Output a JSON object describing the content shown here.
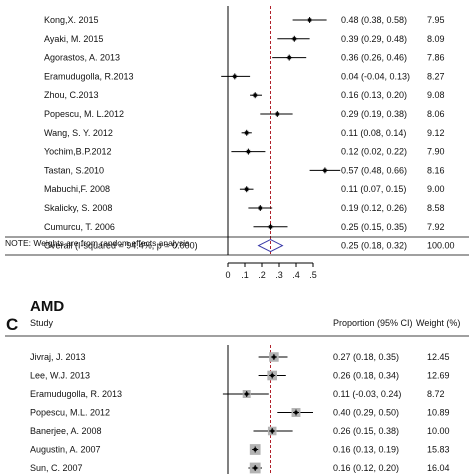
{
  "chart_data": [
    {
      "type": "forest",
      "panel_label": "",
      "title": "",
      "study_header": "",
      "es_header": "",
      "weight_header": "",
      "xlim": [
        0,
        0.5
      ],
      "x_ticks": [
        "0",
        ".1",
        ".2",
        ".3",
        ".4",
        ".5"
      ],
      "x_tick_values": [
        0,
        0.1,
        0.2,
        0.3,
        0.4,
        0.5
      ],
      "overall_line": 0.25,
      "studies": [
        {
          "study": "Kong,X. 2015",
          "es": 0.48,
          "lo": 0.38,
          "hi": 0.58,
          "ci_text": "0.48 (0.38, 0.58)",
          "weight": "7.95"
        },
        {
          "study": "Ayaki, M. 2015",
          "es": 0.39,
          "lo": 0.29,
          "hi": 0.48,
          "ci_text": "0.39 (0.29, 0.48)",
          "weight": "8.09"
        },
        {
          "study": "Agorastos, A. 2013",
          "es": 0.36,
          "lo": 0.26,
          "hi": 0.46,
          "ci_text": "0.36 (0.26, 0.46)",
          "weight": "7.86"
        },
        {
          "study": "Eramudugolla, R.2013",
          "es": 0.04,
          "lo": -0.04,
          "hi": 0.13,
          "ci_text": "0.04 (-0.04, 0.13)",
          "weight": "8.27"
        },
        {
          "study": "Zhou, C.2013",
          "es": 0.16,
          "lo": 0.13,
          "hi": 0.2,
          "ci_text": "0.16 (0.13, 0.20)",
          "weight": "9.08"
        },
        {
          "study": "Popescu, M. L.2012",
          "es": 0.29,
          "lo": 0.19,
          "hi": 0.38,
          "ci_text": "0.29 (0.19, 0.38)",
          "weight": "8.06"
        },
        {
          "study": "Wang, S. Y. 2012",
          "es": 0.11,
          "lo": 0.08,
          "hi": 0.14,
          "ci_text": "0.11 (0.08, 0.14)",
          "weight": "9.12"
        },
        {
          "study": "Yochim,B.P.2012",
          "es": 0.12,
          "lo": 0.02,
          "hi": 0.22,
          "ci_text": "0.12 (0.02, 0.22)",
          "weight": "7.90"
        },
        {
          "study": "Tastan, S.2010",
          "es": 0.57,
          "lo": 0.48,
          "hi": 0.66,
          "ci_text": "0.57 (0.48, 0.66)",
          "weight": "8.16"
        },
        {
          "study": "Mabuchi,F. 2008",
          "es": 0.11,
          "lo": 0.07,
          "hi": 0.15,
          "ci_text": "0.11 (0.07, 0.15)",
          "weight": "9.00"
        },
        {
          "study": "Skalicky, S. 2008",
          "es": 0.19,
          "lo": 0.12,
          "hi": 0.26,
          "ci_text": "0.19 (0.12, 0.26)",
          "weight": "8.58"
        },
        {
          "study": "Cumurcu, T. 2006",
          "es": 0.25,
          "lo": 0.15,
          "hi": 0.35,
          "ci_text": "0.25 (0.15, 0.35)",
          "weight": "7.92"
        }
      ],
      "overall": {
        "label": "Overall  (I-squared = 94.4%, p = 0.000)",
        "es": 0.25,
        "lo": 0.18,
        "hi": 0.32,
        "ci_text": "0.25 (0.18, 0.32)",
        "weight": "100.00"
      },
      "note": "NOTE: Weights are from random effects analysis"
    },
    {
      "type": "forest",
      "panel_label": "C",
      "title": "AMD",
      "study_header": "Study",
      "es_header": "Proportion (95% CI)",
      "weight_header": "Weight (%)",
      "xlim": [
        0,
        0.5
      ],
      "overall_line": 0.25,
      "studies": [
        {
          "study": "Jivraj, J. 2013",
          "es": 0.27,
          "lo": 0.18,
          "hi": 0.35,
          "ci_text": "0.27 (0.18, 0.35)",
          "weight": "12.45"
        },
        {
          "study": "Lee, W.J. 2013",
          "es": 0.26,
          "lo": 0.18,
          "hi": 0.34,
          "ci_text": "0.26 (0.18, 0.34)",
          "weight": "12.69"
        },
        {
          "study": "Eramudugolla, R. 2013",
          "es": 0.11,
          "lo": -0.03,
          "hi": 0.24,
          "ci_text": "0.11 (-0.03, 0.24)",
          "weight": "8.72"
        },
        {
          "study": "Popescu, M.L. 2012",
          "es": 0.4,
          "lo": 0.29,
          "hi": 0.5,
          "ci_text": "0.40 (0.29, 0.50)",
          "weight": "10.89"
        },
        {
          "study": "Banerjee, A. 2008",
          "es": 0.26,
          "lo": 0.15,
          "hi": 0.38,
          "ci_text": "0.26 (0.15, 0.38)",
          "weight": "10.00"
        },
        {
          "study": "Augustin, A. 2007",
          "es": 0.16,
          "lo": 0.13,
          "hi": 0.19,
          "ci_text": "0.16 (0.13, 0.19)",
          "weight": "15.83"
        },
        {
          "study": "Sun, C. 2007",
          "es": 0.16,
          "lo": 0.12,
          "hi": 0.2,
          "ci_text": "0.16 (0.12, 0.20)",
          "weight": "16.04"
        }
      ]
    }
  ]
}
